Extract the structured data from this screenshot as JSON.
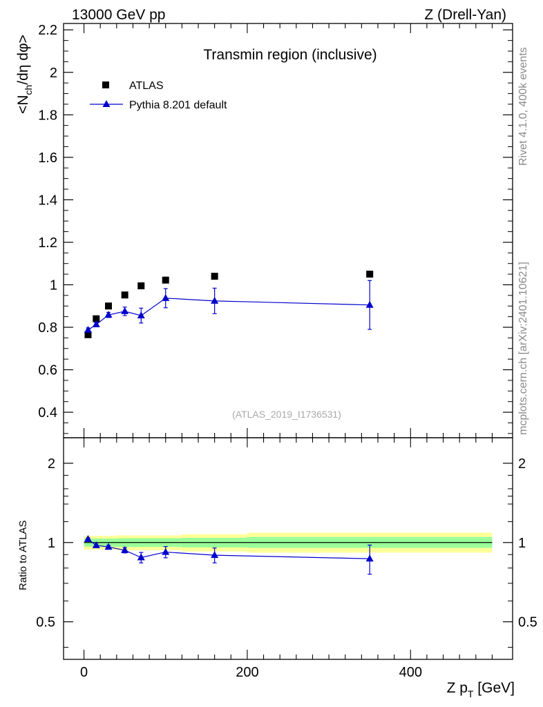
{
  "header": {
    "left": "13000 GeV pp",
    "right": "Z (Drell-Yan)"
  },
  "side_labels": {
    "rivet": "Rivet 4.1.0,  400k events",
    "mcplots": "mcplots.cern.ch [arXiv:2401.10621]"
  },
  "colors": {
    "atlas": "#000000",
    "pythia": "#0000cc",
    "band_inner": "#99ff99",
    "band_outer": "#ffff99"
  },
  "chart_data": [
    {
      "type": "scatter",
      "title": "Transmin region (inclusive)",
      "ylabel_main": "<N",
      "ylabel_sub": "ch",
      "ylabel_rest": "/dη dφ>",
      "watermark": "(ATLAS_2019_I1736531)",
      "xlim": [
        -25,
        525
      ],
      "ylim": [
        0.28,
        2.23
      ],
      "y_ticks": [
        0.4,
        0.6,
        0.8,
        1.0,
        1.2,
        1.4,
        1.6,
        1.8,
        2.0,
        2.2
      ],
      "y_tick_labels": [
        "0.4",
        "0.6",
        "0.8",
        "1",
        "1.2",
        "1.4",
        "1.6",
        "1.8",
        "2",
        "2.2"
      ],
      "legend": [
        {
          "name": "ATLAS",
          "marker": "square"
        },
        {
          "name": "Pythia 8.201 default",
          "marker": "triangle"
        }
      ],
      "series": [
        {
          "name": "ATLAS",
          "x": [
            5,
            15,
            30,
            50,
            70,
            100,
            160,
            350
          ],
          "y": [
            0.765,
            0.84,
            0.9,
            0.952,
            0.995,
            1.022,
            1.04,
            1.05
          ]
        },
        {
          "name": "Pythia 8.201 default",
          "x": [
            5,
            15,
            30,
            50,
            70,
            100,
            160,
            350
          ],
          "y": [
            0.787,
            0.813,
            0.858,
            0.875,
            0.855,
            0.937,
            0.924,
            0.905
          ],
          "err": [
            0.01,
            0.01,
            0.012,
            0.02,
            0.035,
            0.045,
            0.06,
            0.115
          ]
        }
      ]
    },
    {
      "type": "line",
      "ylabel": "Ratio to ATLAS",
      "xlabel_main": "Z p",
      "xlabel_sub": "T",
      "xlabel_rest": " [GeV]",
      "ylim": [
        0.36,
        2.5
      ],
      "y_ticks": [
        0.5,
        1,
        2
      ],
      "y_tick_labels": [
        "0.5",
        "1",
        "2"
      ],
      "x_ticks": [
        0,
        200,
        400
      ],
      "x_tick_labels": [
        "0",
        "200",
        "400"
      ],
      "bands": [
        {
          "x0": 0,
          "x1": 40,
          "inner": [
            0.965,
            1.035
          ],
          "outer": [
            0.94,
            1.06
          ]
        },
        {
          "x0": 40,
          "x1": 120,
          "inner": [
            0.962,
            1.038
          ],
          "outer": [
            0.935,
            1.065
          ]
        },
        {
          "x0": 120,
          "x1": 200,
          "inner": [
            0.958,
            1.042
          ],
          "outer": [
            0.925,
            1.075
          ]
        },
        {
          "x0": 200,
          "x1": 500,
          "inner": [
            0.955,
            1.05
          ],
          "outer": [
            0.915,
            1.09
          ]
        }
      ],
      "series": [
        {
          "name": "Pythia 8.201 default",
          "x": [
            5,
            15,
            30,
            50,
            70,
            100,
            160,
            350
          ],
          "y": [
            1.03,
            0.975,
            0.962,
            0.935,
            0.877,
            0.92,
            0.895,
            0.868
          ],
          "err": [
            0.012,
            0.012,
            0.014,
            0.022,
            0.04,
            0.045,
            0.058,
            0.11
          ]
        }
      ]
    }
  ]
}
